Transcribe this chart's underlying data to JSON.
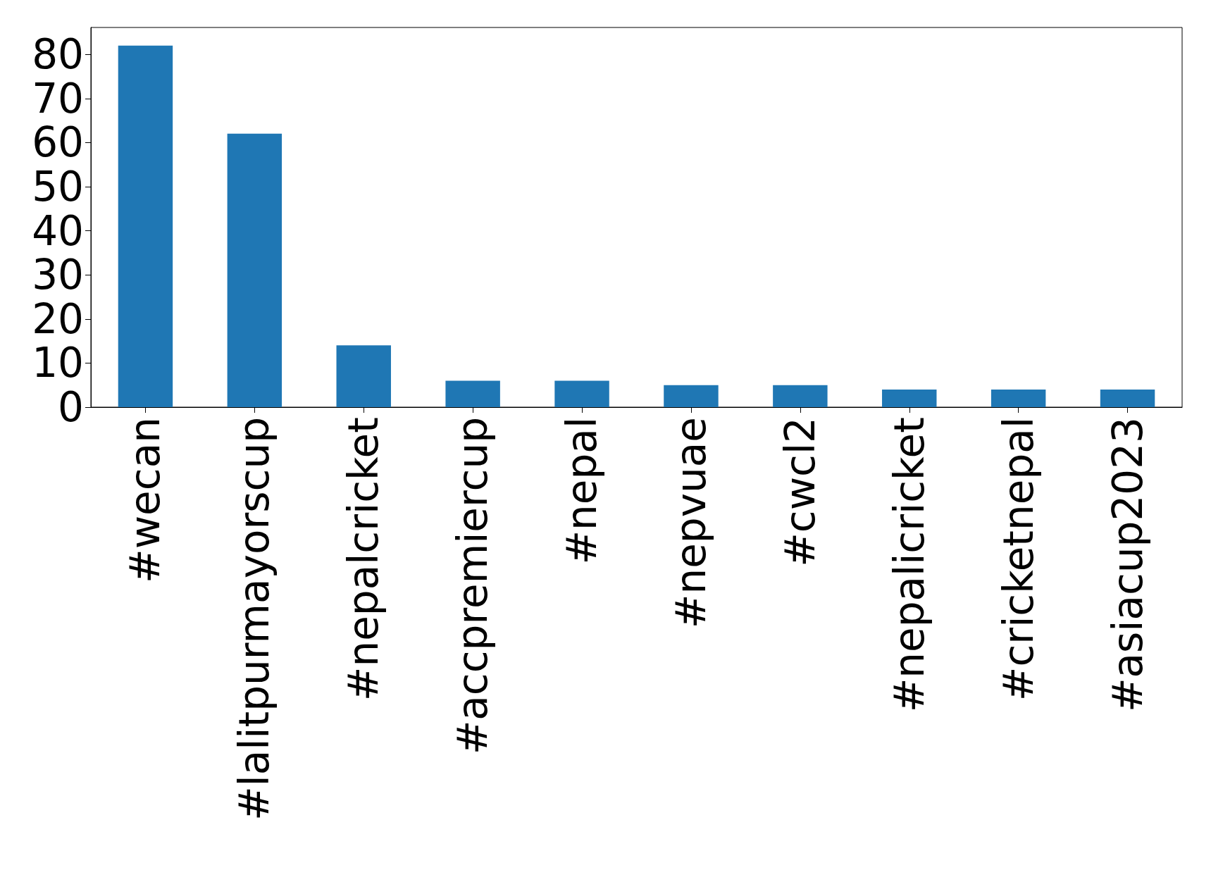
{
  "chart_data": {
    "type": "bar",
    "categories": [
      "#wecan",
      "#lalitpurmayorscup",
      "#nepalcricket",
      "#accpremiercup",
      "#nepal",
      "#nepvuae",
      "#cwcl2",
      "#nepalicricket",
      "#cricketnepal",
      "#asiacup2023"
    ],
    "values": [
      82,
      62,
      14,
      6,
      6,
      5,
      5,
      4,
      4,
      4
    ],
    "color": "#1f77b4",
    "ylim": [
      0,
      86.1
    ],
    "yticks": [
      0,
      10,
      20,
      30,
      40,
      50,
      60,
      70,
      80
    ]
  }
}
